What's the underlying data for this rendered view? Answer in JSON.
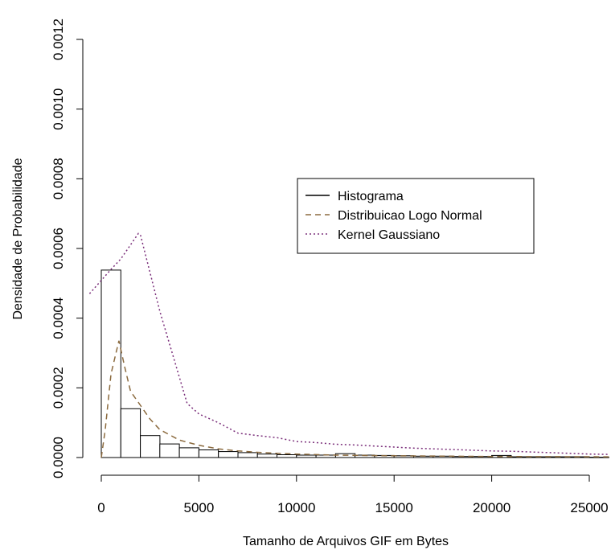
{
  "chart_data": {
    "type": "bar",
    "xlabel": "Tamanho de Arquivos GIF em Bytes",
    "ylabel": "Densidade de Probabilidade",
    "xlim": [
      0,
      26000
    ],
    "ylim": [
      0,
      0.0012
    ],
    "x_ticks": [
      0,
      5000,
      10000,
      15000,
      20000,
      25000
    ],
    "x_tick_labels": [
      "0",
      "5000",
      "10000",
      "15000",
      "20000",
      "25000"
    ],
    "y_ticks": [
      0,
      0.0002,
      0.0004,
      0.0006,
      0.0008,
      0.001,
      0.0012
    ],
    "y_tick_labels": [
      "0.0000",
      "0.0002",
      "0.0004",
      "0.0006",
      "0.0008",
      "0.0010",
      "0.0012"
    ],
    "grid": false,
    "legend_position": "right-center",
    "histogram": {
      "name": "Histograma",
      "bin_width": 1000,
      "bins": [
        {
          "x0": 0,
          "x1": 1000,
          "y": 0.000538
        },
        {
          "x0": 1000,
          "x1": 2000,
          "y": 0.00014
        },
        {
          "x0": 2000,
          "x1": 3000,
          "y": 6.3e-05
        },
        {
          "x0": 3000,
          "x1": 4000,
          "y": 3.9e-05
        },
        {
          "x0": 4000,
          "x1": 5000,
          "y": 2.8e-05
        },
        {
          "x0": 5000,
          "x1": 6000,
          "y": 2.2e-05
        },
        {
          "x0": 6000,
          "x1": 7000,
          "y": 1.7e-05
        },
        {
          "x0": 7000,
          "x1": 8000,
          "y": 1.4e-05
        },
        {
          "x0": 8000,
          "x1": 9000,
          "y": 1e-05
        },
        {
          "x0": 9000,
          "x1": 10000,
          "y": 8e-06
        },
        {
          "x0": 10000,
          "x1": 11000,
          "y": 7e-06
        },
        {
          "x0": 11000,
          "x1": 12000,
          "y": 7e-06
        },
        {
          "x0": 12000,
          "x1": 13000,
          "y": 1.1e-05
        },
        {
          "x0": 13000,
          "x1": 14000,
          "y": 7e-06
        },
        {
          "x0": 14000,
          "x1": 15000,
          "y": 6e-06
        },
        {
          "x0": 15000,
          "x1": 16000,
          "y": 5e-06
        },
        {
          "x0": 16000,
          "x1": 17000,
          "y": 4e-06
        },
        {
          "x0": 17000,
          "x1": 18000,
          "y": 4e-06
        },
        {
          "x0": 18000,
          "x1": 19000,
          "y": 3e-06
        },
        {
          "x0": 19000,
          "x1": 20000,
          "y": 3e-06
        },
        {
          "x0": 20000,
          "x1": 21000,
          "y": 6e-06
        },
        {
          "x0": 21000,
          "x1": 22000,
          "y": 2e-06
        },
        {
          "x0": 22000,
          "x1": 23000,
          "y": 2e-06
        },
        {
          "x0": 23000,
          "x1": 24000,
          "y": 2e-06
        },
        {
          "x0": 24000,
          "x1": 25000,
          "y": 2e-06
        },
        {
          "x0": 25000,
          "x1": 26000,
          "y": 1e-06
        }
      ]
    },
    "series": [
      {
        "name": "Distribuicao Logo Normal",
        "color": "#8B6A3E",
        "line_style": "dashed",
        "x": [
          0,
          200,
          500,
          900,
          1200,
          1500,
          2000,
          2500,
          3000,
          4000,
          5000,
          6000,
          7000,
          8000,
          9000,
          10000,
          12000,
          15000,
          20000,
          26000
        ],
        "y": [
          0.0,
          8e-05,
          0.00024,
          0.000335,
          0.00026,
          0.00019,
          0.00015,
          0.00011,
          8e-05,
          5e-05,
          3.5e-05,
          2.5e-05,
          1.9e-05,
          1.5e-05,
          1.2e-05,
          1e-05,
          7e-06,
          5e-06,
          3e-06,
          2e-06
        ]
      },
      {
        "name": "Kernel Gaussiano",
        "color": "#7A2E7A",
        "line_style": "dotted",
        "x": [
          -600,
          500,
          1000,
          1900,
          2000,
          3000,
          4400,
          5000,
          6000,
          7000,
          8000,
          9000,
          10000,
          11000,
          12000,
          13000,
          14000,
          15000,
          16000,
          17000,
          18000,
          19000,
          20000,
          21000,
          22000,
          23000,
          24000,
          25000,
          26000
        ],
        "y": [
          0.00047,
          0.00054,
          0.00057,
          0.000643,
          0.00064,
          0.00042,
          0.000155,
          0.000125,
          0.0001,
          7e-05,
          6.3e-05,
          5.7e-05,
          4.6e-05,
          4.3e-05,
          3.8e-05,
          3.6e-05,
          3.3e-05,
          3e-05,
          2.7e-05,
          2.5e-05,
          2.3e-05,
          2.1e-05,
          1.9e-05,
          1.8e-05,
          1.6e-05,
          1.4e-05,
          1.2e-05,
          1e-05,
          9e-06
        ]
      }
    ],
    "legend": [
      {
        "label": "Histograma",
        "color": "#000000",
        "line_style": "solid"
      },
      {
        "label": "Distribuicao Logo Normal",
        "color": "#8B6A3E",
        "line_style": "dashed"
      },
      {
        "label": "Kernel Gaussiano",
        "color": "#7A2E7A",
        "line_style": "dotted"
      }
    ]
  }
}
